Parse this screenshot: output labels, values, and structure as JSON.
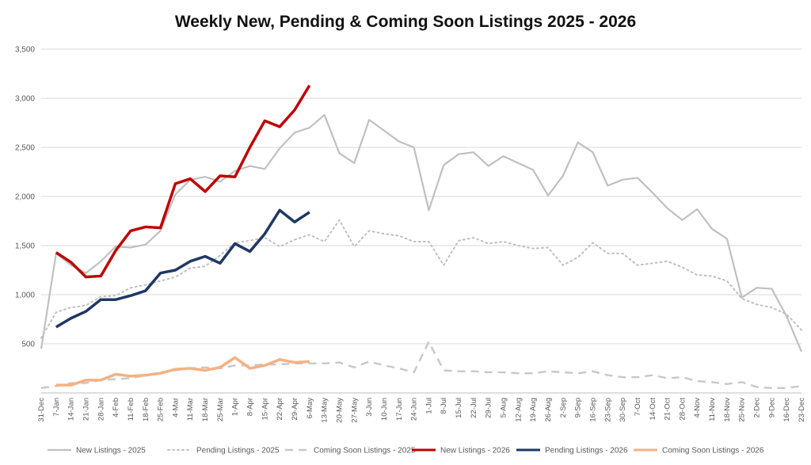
{
  "chart_data": {
    "type": "line",
    "title": "Weekly New, Pending & Coming Soon Listings 2025 - 2026",
    "xlabel": "",
    "ylabel": "",
    "ylim": [
      0,
      3500
    ],
    "yticks": [
      0,
      500,
      1000,
      1500,
      2000,
      2500,
      3000,
      3500
    ],
    "ytick_labels": [
      "",
      "500",
      "1,000",
      "1,500",
      "2,000",
      "2,500",
      "3,000",
      "3,500"
    ],
    "grid": true,
    "legend_position": "bottom",
    "categories": [
      "31-Dec",
      "7-Jan",
      "14-Jan",
      "21-Jan",
      "28-Jan",
      "4-Feb",
      "11-Feb",
      "18-Feb",
      "25-Feb",
      "4-Mar",
      "11-Mar",
      "18-Mar",
      "25-Mar",
      "1-Apr",
      "8-Apr",
      "15-Apr",
      "22-Apr",
      "29-Apr",
      "6-May",
      "13-May",
      "20-May",
      "27-May",
      "3-Jun",
      "10-Jun",
      "17-Jun",
      "24-Jun",
      "1-Jul",
      "8-Jul",
      "15-Jul",
      "22-Jul",
      "29-Jul",
      "5-Aug",
      "12-Aug",
      "19-Aug",
      "26-Aug",
      "2-Sep",
      "9-Sep",
      "16-Sep",
      "23-Sep",
      "30-Sep",
      "7-Oct",
      "14-Oct",
      "21-Oct",
      "28-Oct",
      "4-Nov",
      "11-Nov",
      "18-Nov",
      "25-Nov",
      "2-Dec",
      "9-Dec",
      "16-Dec",
      "23-Dec"
    ],
    "series": [
      {
        "name": "New Listings - 2025",
        "color": "#c0c0c0",
        "style": "solid",
        "width": 2.2,
        "values": [
          450,
          1420,
          1300,
          1220,
          1340,
          1490,
          1480,
          1510,
          1650,
          2020,
          2170,
          2200,
          2150,
          2260,
          2310,
          2280,
          2490,
          2650,
          2700,
          2830,
          2440,
          2340,
          2780,
          2670,
          2560,
          2500,
          1860,
          2320,
          2430,
          2450,
          2310,
          2410,
          2340,
          2270,
          2010,
          2210,
          2550,
          2450,
          2110,
          2170,
          2190,
          2040,
          1880,
          1760,
          1870,
          1670,
          1570,
          970,
          1070,
          1060,
          780,
          420
        ]
      },
      {
        "name": "Pending Listings - 2025",
        "color": "#c0c0c0",
        "style": "dotted",
        "width": 2,
        "values": [
          560,
          820,
          870,
          890,
          980,
          990,
          1070,
          1100,
          1140,
          1180,
          1270,
          1290,
          1400,
          1530,
          1550,
          1580,
          1490,
          1560,
          1610,
          1540,
          1760,
          1490,
          1650,
          1620,
          1600,
          1540,
          1540,
          1300,
          1550,
          1580,
          1520,
          1540,
          1500,
          1470,
          1480,
          1300,
          1380,
          1530,
          1420,
          1420,
          1300,
          1320,
          1340,
          1280,
          1200,
          1190,
          1140,
          960,
          900,
          870,
          800,
          640
        ]
      },
      {
        "name": "Coming Soon Listings - 2025",
        "color": "#c8c8c8",
        "style": "dashed",
        "width": 2.4,
        "values": [
          50,
          70,
          100,
          100,
          130,
          140,
          150,
          180,
          210,
          230,
          250,
          260,
          250,
          280,
          280,
          290,
          290,
          300,
          300,
          300,
          310,
          260,
          320,
          280,
          250,
          210,
          520,
          230,
          220,
          220,
          210,
          210,
          200,
          200,
          220,
          210,
          200,
          220,
          180,
          160,
          160,
          180,
          150,
          160,
          120,
          110,
          90,
          110,
          60,
          50,
          50,
          70
        ]
      },
      {
        "name": "New Listings - 2026",
        "color": "#c00000",
        "style": "solid",
        "width": 3.5,
        "values": [
          null,
          1430,
          1330,
          1180,
          1190,
          1450,
          1650,
          1690,
          1680,
          2130,
          2180,
          2050,
          2210,
          2200,
          2500,
          2770,
          2710,
          2880,
          3130,
          null,
          null,
          null,
          null,
          null,
          null,
          null,
          null,
          null,
          null,
          null,
          null,
          null,
          null,
          null,
          null,
          null,
          null,
          null,
          null,
          null,
          null,
          null,
          null,
          null,
          null,
          null,
          null,
          null,
          null,
          null,
          null,
          null
        ]
      },
      {
        "name": "Pending Listings - 2026",
        "color": "#1f3864",
        "style": "solid",
        "width": 3.5,
        "values": [
          null,
          670,
          760,
          830,
          950,
          950,
          990,
          1040,
          1220,
          1250,
          1340,
          1390,
          1320,
          1520,
          1440,
          1620,
          1860,
          1740,
          1840,
          null,
          null,
          null,
          null,
          null,
          null,
          null,
          null,
          null,
          null,
          null,
          null,
          null,
          null,
          null,
          null,
          null,
          null,
          null,
          null,
          null,
          null,
          null,
          null,
          null,
          null,
          null,
          null,
          null,
          null,
          null,
          null,
          null
        ]
      },
      {
        "name": "Coming Soon Listings - 2026",
        "color": "#f4b183",
        "style": "solid",
        "width": 3.5,
        "values": [
          null,
          80,
          80,
          130,
          130,
          190,
          170,
          180,
          200,
          240,
          250,
          230,
          260,
          360,
          250,
          280,
          340,
          310,
          320,
          null,
          null,
          null,
          null,
          null,
          null,
          null,
          null,
          null,
          null,
          null,
          null,
          null,
          null,
          null,
          null,
          null,
          null,
          null,
          null,
          null,
          null,
          null,
          null,
          null,
          null,
          null,
          null,
          null,
          null,
          null,
          null,
          null
        ]
      }
    ]
  }
}
